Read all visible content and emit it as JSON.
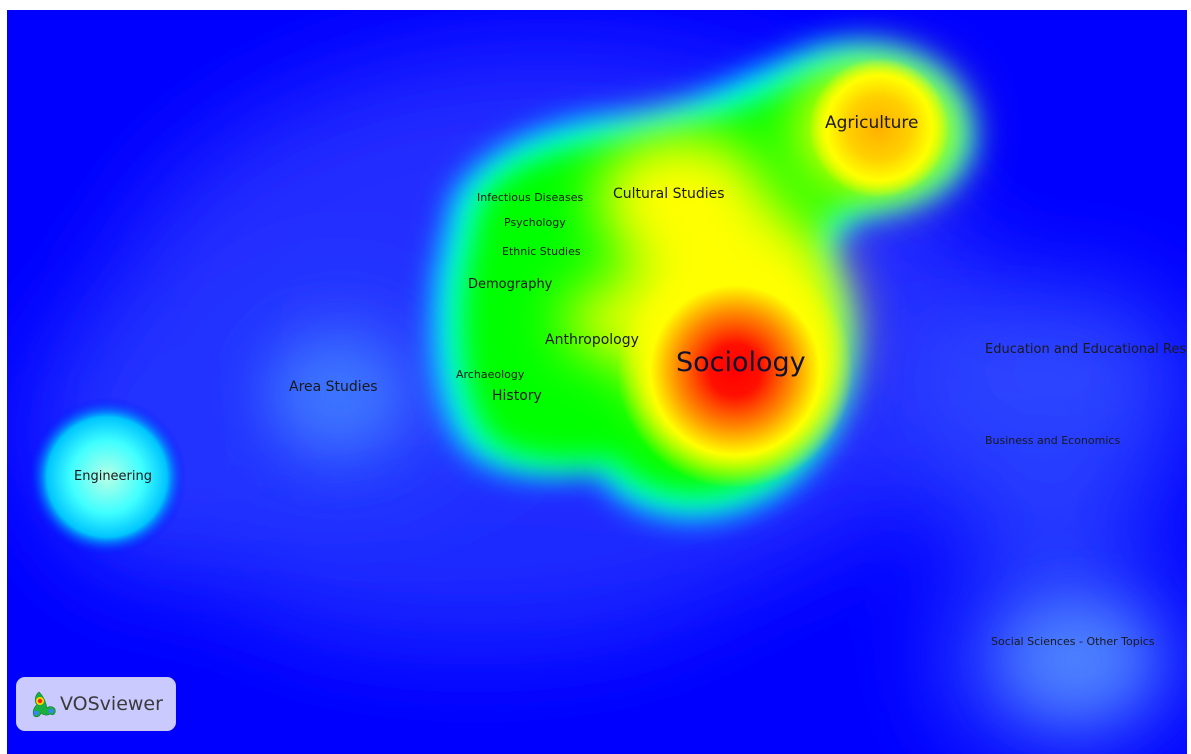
{
  "app_name": "VOSviewer",
  "view": "density-visualization",
  "colors": {
    "background": "#0000ff",
    "density_scale": [
      "#0000ff",
      "#00ffff",
      "#00ff00",
      "#ffff00",
      "#ff0000"
    ]
  },
  "terms": [
    {
      "id": "sociology",
      "label": "Sociology",
      "density": 1.0
    },
    {
      "id": "agriculture",
      "label": "Agriculture",
      "density": 0.82
    },
    {
      "id": "cultural-studies",
      "label": "Cultural Studies",
      "density": 0.7
    },
    {
      "id": "anthropology",
      "label": "Anthropology",
      "density": 0.6
    },
    {
      "id": "history",
      "label": "History",
      "density": 0.5
    },
    {
      "id": "demography",
      "label": "Demography",
      "density": 0.45
    },
    {
      "id": "ethnic-studies",
      "label": "Ethnic Studies",
      "density": 0.45
    },
    {
      "id": "psychology",
      "label": "Psychology",
      "density": 0.45
    },
    {
      "id": "infectious-diseases",
      "label": "Infectious Diseases",
      "density": 0.4
    },
    {
      "id": "archaeology",
      "label": "Archaeology",
      "density": 0.4
    },
    {
      "id": "area-studies",
      "label": "Area Studies",
      "density": 0.25
    },
    {
      "id": "engineering",
      "label": "Engineering",
      "density": 0.3
    },
    {
      "id": "education",
      "label": "Education and Educational Rese",
      "density": 0.15
    },
    {
      "id": "business",
      "label": "Business and Economics",
      "density": 0.12
    },
    {
      "id": "social-sciences",
      "label": "Social Sciences - Other Topics",
      "density": 0.15
    }
  ]
}
